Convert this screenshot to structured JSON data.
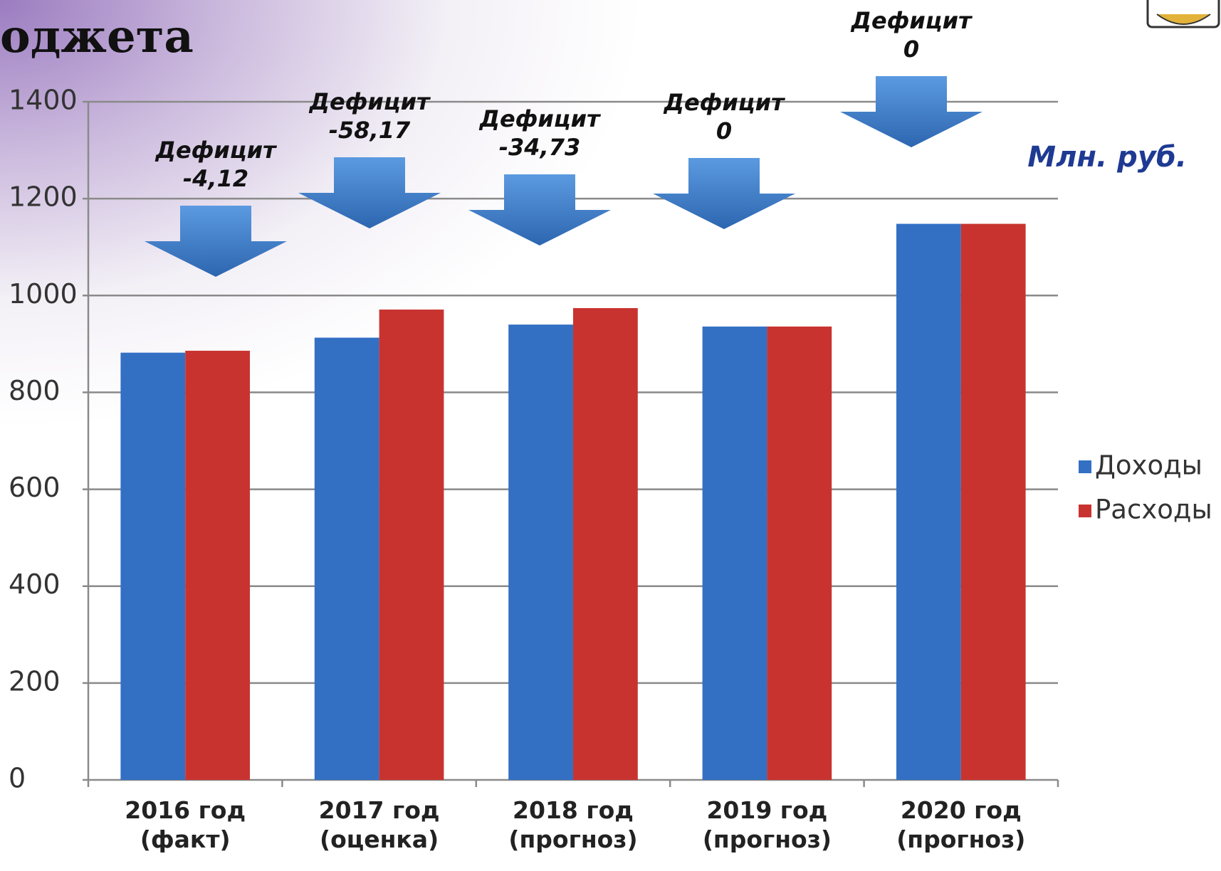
{
  "chart_data": {
    "type": "bar",
    "title": "оджета",
    "unit_label": "Млн. руб.",
    "categories": [
      "2016 год\n(факт)",
      "2017 год\n(оценка)",
      "2018 год\n(прогноз)",
      "2019 год\n(прогноз)",
      "2020 год\n(прогноз)"
    ],
    "series": [
      {
        "name": "Доходы",
        "color": "#3370c4",
        "values": [
          882,
          913,
          940,
          936,
          1148
        ]
      },
      {
        "name": "Расходы",
        "color": "#c9332f",
        "values": [
          886,
          971,
          974,
          936,
          1148
        ]
      }
    ],
    "annotations": [
      "Дефицит\n-4,12",
      "Дефицит\n-58,17",
      "Дефицит\n-34,73",
      "Дефицит\n0",
      "Дефицит\n0"
    ],
    "ylim": [
      0,
      1400
    ],
    "yticks": [
      0,
      200,
      400,
      600,
      800,
      1000,
      1200,
      1400
    ],
    "grid": true,
    "legend": "right"
  }
}
